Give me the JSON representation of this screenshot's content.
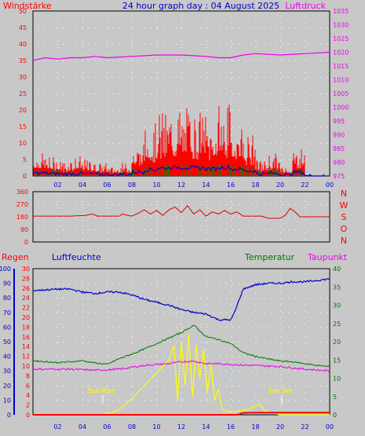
{
  "header": {
    "left_label": "Windstärke",
    "title": "24 hour graph day : 04 August 2025",
    "right_label": "Luftdruck"
  },
  "mid_labels": {
    "left": "Regen",
    "humidity": "Luftfeuchte",
    "temperature": "Temperatur",
    "dewpoint": "Taupunkt"
  },
  "sun": {
    "rise_label": "Sun Rise",
    "set_label": "Sun Set"
  },
  "direction_letters": [
    "N",
    "W",
    "S",
    "O",
    "N"
  ],
  "colors": {
    "background": "#c8c8c8",
    "wind": "#ff0000",
    "gust_avg": "#0000cc",
    "wind_green": "#008800",
    "pressure": "#ee00ee",
    "direction": "#dd0000",
    "humidity": "#0000cc",
    "temperature": "#007700",
    "dewpoint": "#ee00ee",
    "solar": "#ffff00",
    "uv": "#9fc8ff",
    "rain": "#ff0000"
  },
  "chart_data": [
    {
      "type": "bar",
      "panel": "wind_pressure",
      "x_ticks": [
        "02",
        "04",
        "06",
        "08",
        "10",
        "12",
        "14",
        "16",
        "18",
        "20",
        "22",
        "00"
      ],
      "xlim": [
        0,
        24
      ],
      "wind_axis": {
        "ticks": [
          0,
          5,
          10,
          15,
          20,
          25,
          30,
          35,
          40,
          45,
          50
        ],
        "ylim": [
          0,
          50
        ]
      },
      "pressure_axis": {
        "ticks": [
          975,
          980,
          985,
          990,
          995,
          1000,
          1005,
          1010,
          1015,
          1020,
          1025,
          1030,
          1035
        ],
        "ylim": [
          975,
          1035
        ]
      },
      "series": [
        {
          "name": "Windstärke",
          "hourly_max": [
            7,
            6,
            5,
            6,
            5,
            4,
            3,
            4,
            10,
            16,
            20,
            22,
            21,
            20,
            18,
            22,
            17,
            13,
            5,
            7,
            3,
            9,
            0,
            0
          ]
        },
        {
          "name": "Luftdruck",
          "points": [
            [
              0,
              1017
            ],
            [
              1,
              1018
            ],
            [
              2,
              1017.5
            ],
            [
              3,
              1018
            ],
            [
              4,
              1018
            ],
            [
              5,
              1018.5
            ],
            [
              6,
              1018
            ],
            [
              8,
              1018.5
            ],
            [
              10,
              1019
            ],
            [
              12,
              1019
            ],
            [
              14,
              1018.5
            ],
            [
              15,
              1018
            ],
            [
              16,
              1018
            ],
            [
              17,
              1019
            ],
            [
              18,
              1019.5
            ],
            [
              20,
              1019
            ],
            [
              22,
              1019.5
            ],
            [
              24,
              1020
            ]
          ]
        }
      ]
    },
    {
      "type": "line",
      "panel": "wind_direction",
      "y_ticks": [
        "360",
        "270",
        "180",
        "90",
        "0"
      ],
      "ylim": [
        0,
        360
      ],
      "series": [
        {
          "name": "direction",
          "points": [
            [
              0,
              185
            ],
            [
              3,
              185
            ],
            [
              4.2,
              190
            ],
            [
              4.8,
              200
            ],
            [
              5.2,
              185
            ],
            [
              7,
              185
            ],
            [
              7.2,
              200
            ],
            [
              7.7,
              190
            ],
            [
              8,
              185
            ],
            [
              8.5,
              205
            ],
            [
              9,
              230
            ],
            [
              9.5,
              200
            ],
            [
              10,
              225
            ],
            [
              10.5,
              190
            ],
            [
              11,
              230
            ],
            [
              11.5,
              250
            ],
            [
              12,
              210
            ],
            [
              12.5,
              260
            ],
            [
              13,
              200
            ],
            [
              13.5,
              230
            ],
            [
              14,
              185
            ],
            [
              14.5,
              215
            ],
            [
              15,
              200
            ],
            [
              15.5,
              225
            ],
            [
              16,
              200
            ],
            [
              16.5,
              215
            ],
            [
              17,
              185
            ],
            [
              18.5,
              185
            ],
            [
              19,
              170
            ],
            [
              20,
              170
            ],
            [
              20.4,
              190
            ],
            [
              20.8,
              240
            ],
            [
              21.2,
              215
            ],
            [
              21.6,
              180
            ],
            [
              24,
              180
            ]
          ]
        }
      ]
    },
    {
      "type": "line",
      "panel": "temperature_humidity",
      "humidity_axis": {
        "ticks": [
          0,
          10,
          20,
          30,
          40,
          50,
          60,
          70,
          80,
          90,
          100
        ],
        "ylim": [
          0,
          100
        ]
      },
      "rain_axis": {
        "ticks": [
          0,
          2,
          4,
          6,
          8,
          10,
          12,
          14,
          16,
          18,
          20,
          22,
          24,
          26,
          28,
          30
        ],
        "ylim": [
          0,
          30
        ]
      },
      "temperature_axis": {
        "ticks": [
          0,
          5,
          10,
          15,
          20,
          25,
          30,
          35,
          40
        ],
        "ylim": [
          0,
          40
        ]
      },
      "series": [
        {
          "name": "Luftfeuchte",
          "points": [
            [
              0,
              85
            ],
            [
              2,
              86
            ],
            [
              3,
              86
            ],
            [
              4,
              84
            ],
            [
              5,
              83
            ],
            [
              6,
              84
            ],
            [
              7,
              84
            ],
            [
              8,
              82
            ],
            [
              9,
              79
            ],
            [
              10,
              77
            ],
            [
              11,
              75
            ],
            [
              12,
              72
            ],
            [
              13,
              70
            ],
            [
              14,
              69
            ],
            [
              15,
              65
            ],
            [
              16,
              65
            ],
            [
              16.3,
              70
            ],
            [
              17,
              86
            ],
            [
              18,
              89
            ],
            [
              19,
              90
            ],
            [
              20,
              90
            ],
            [
              21,
              91
            ],
            [
              22,
              91
            ],
            [
              23,
              92
            ],
            [
              24,
              93
            ]
          ]
        },
        {
          "name": "Temperatur",
          "points": [
            [
              0,
              14.8
            ],
            [
              2,
              14.3
            ],
            [
              3,
              14.5
            ],
            [
              4,
              14.8
            ],
            [
              5,
              14.2
            ],
            [
              6,
              13.8
            ],
            [
              7,
              15.4
            ],
            [
              8,
              16.6
            ],
            [
              9,
              18
            ],
            [
              10,
              19.5
            ],
            [
              11,
              21
            ],
            [
              12,
              22.5
            ],
            [
              13,
              24.5
            ],
            [
              14,
              21.4
            ],
            [
              15,
              20.6
            ],
            [
              16,
              19.5
            ],
            [
              17,
              17
            ],
            [
              18,
              16
            ],
            [
              19,
              15.3
            ],
            [
              20,
              14.7
            ],
            [
              21,
              14.5
            ],
            [
              22,
              14
            ],
            [
              23,
              13.5
            ],
            [
              24,
              13.2
            ]
          ]
        },
        {
          "name": "Taupunkt",
          "points": [
            [
              0,
              12.5
            ],
            [
              3,
              12.5
            ],
            [
              5,
              12.2
            ],
            [
              6,
              12.3
            ],
            [
              7,
              12.5
            ],
            [
              8,
              13
            ],
            [
              9,
              13.5
            ],
            [
              10,
              13.8
            ],
            [
              11,
              14
            ],
            [
              12,
              14.5
            ],
            [
              13,
              14.7
            ],
            [
              14,
              14
            ],
            [
              15,
              14
            ],
            [
              16,
              13.8
            ],
            [
              17,
              13.6
            ],
            [
              18,
              13.5
            ],
            [
              20,
              13.2
            ],
            [
              22,
              12.5
            ],
            [
              24,
              12
            ]
          ]
        },
        {
          "name": "solar",
          "points": [
            [
              0,
              0
            ],
            [
              5.5,
              0
            ],
            [
              6.3,
              0.5
            ],
            [
              7,
              1.5
            ],
            [
              8,
              4.5
            ],
            [
              9,
              8
            ],
            [
              10,
              11.5
            ],
            [
              11,
              15
            ],
            [
              11.4,
              19
            ],
            [
              11.7,
              4
            ],
            [
              12,
              20
            ],
            [
              12.3,
              8
            ],
            [
              12.6,
              22
            ],
            [
              12.9,
              5
            ],
            [
              13.2,
              19
            ],
            [
              13.5,
              10
            ],
            [
              13.8,
              18
            ],
            [
              14.1,
              6
            ],
            [
              14.4,
              14
            ],
            [
              14.7,
              4
            ],
            [
              15,
              7
            ],
            [
              15.3,
              1.5
            ],
            [
              15.8,
              0.8
            ],
            [
              16.5,
              1
            ],
            [
              17.5,
              1.5
            ],
            [
              18.3,
              3
            ],
            [
              18.8,
              1
            ],
            [
              19.5,
              0.5
            ],
            [
              20,
              0
            ],
            [
              24,
              0
            ]
          ]
        },
        {
          "name": "uv",
          "points": [
            [
              0,
              0
            ],
            [
              5.8,
              0
            ],
            [
              7,
              1.5
            ],
            [
              8,
              5
            ],
            [
              9,
              9
            ],
            [
              10,
              13
            ],
            [
              11,
              16.5
            ],
            [
              12,
              19
            ],
            [
              13,
              20
            ],
            [
              14,
              19
            ],
            [
              15,
              15.5
            ],
            [
              16,
              11.5
            ],
            [
              17,
              7
            ],
            [
              18,
              3.5
            ],
            [
              19,
              1
            ],
            [
              20,
              0
            ],
            [
              24,
              0
            ]
          ]
        },
        {
          "name": "Regen",
          "points": [
            [
              0,
              0
            ],
            [
              16.5,
              0
            ],
            [
              17,
              0.5
            ],
            [
              18,
              0.6
            ],
            [
              24,
              0.6
            ]
          ]
        }
      ]
    }
  ]
}
